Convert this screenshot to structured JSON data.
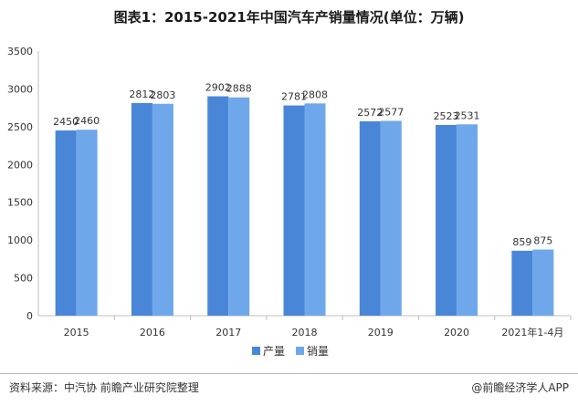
{
  "chart_data": {
    "type": "bar",
    "title": "图表1：2015-2021年中国汽车产销量情况(单位：万辆)",
    "categories": [
      "2015",
      "2016",
      "2017",
      "2018",
      "2019",
      "2020",
      "2021年1-4月"
    ],
    "series": [
      {
        "name": "产量",
        "values": [
          2450,
          2812,
          2902,
          2781,
          2572,
          2523,
          859
        ]
      },
      {
        "name": "销量",
        "values": [
          2460,
          2803,
          2888,
          2808,
          2577,
          2531,
          875
        ]
      }
    ],
    "ylim": [
      0,
      3500
    ],
    "yticks": [
      0,
      500,
      1000,
      1500,
      2000,
      2500,
      3000,
      3500
    ],
    "grid": false,
    "legend_position": "bottom-center",
    "colors": {
      "产量": "#4a86d8",
      "销量": "#6fa8ea"
    }
  },
  "footer": {
    "source": "资料来源：中汽协 前瞻产业研究院整理",
    "brand": "@前瞻经济学人APP"
  }
}
